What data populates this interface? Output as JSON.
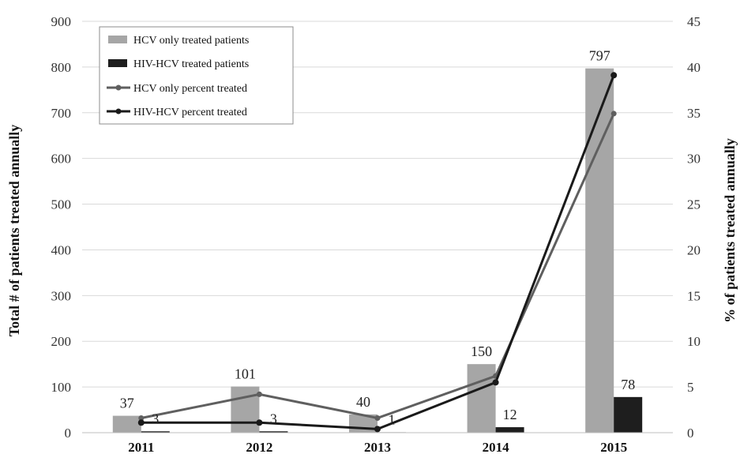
{
  "chart_data": {
    "type": "bar",
    "categories": [
      "2011",
      "2012",
      "2013",
      "2014",
      "2015"
    ],
    "series": [
      {
        "name": "HCV only treated patients",
        "kind": "bar",
        "axis": "left",
        "color": "#a6a6a6",
        "values": [
          37,
          101,
          40,
          150,
          797
        ],
        "labels": [
          "37",
          "101",
          "40",
          "150",
          "797"
        ]
      },
      {
        "name": "HIV-HCV treated patients",
        "kind": "bar",
        "axis": "left",
        "color": "#1e1e1e",
        "values": [
          3,
          3,
          1,
          12,
          78
        ],
        "labels": [
          "3",
          "3",
          "1",
          "12",
          "78"
        ]
      },
      {
        "name": "HCV only percent treated",
        "kind": "line",
        "axis": "right",
        "color": "#5f5f5f",
        "values": [
          1.6,
          4.2,
          1.6,
          6.2,
          34.9
        ]
      },
      {
        "name": "HIV-HCV percent treated",
        "kind": "line",
        "axis": "right",
        "color": "#1a1a1a",
        "values": [
          1.1,
          1.1,
          0.4,
          5.5,
          39.1
        ]
      }
    ],
    "ylabel": "Total # of patients treated annually",
    "y2label": "% of patients treated annually",
    "ylim": [
      0,
      900
    ],
    "y2lim": [
      0,
      45
    ],
    "yticks": [
      "0",
      "100",
      "200",
      "300",
      "400",
      "500",
      "600",
      "700",
      "800",
      "900"
    ],
    "y2ticks": [
      "0",
      "5",
      "10",
      "15",
      "20",
      "25",
      "30",
      "35",
      "40",
      "45"
    ],
    "grid": true,
    "legend": "top-left"
  }
}
